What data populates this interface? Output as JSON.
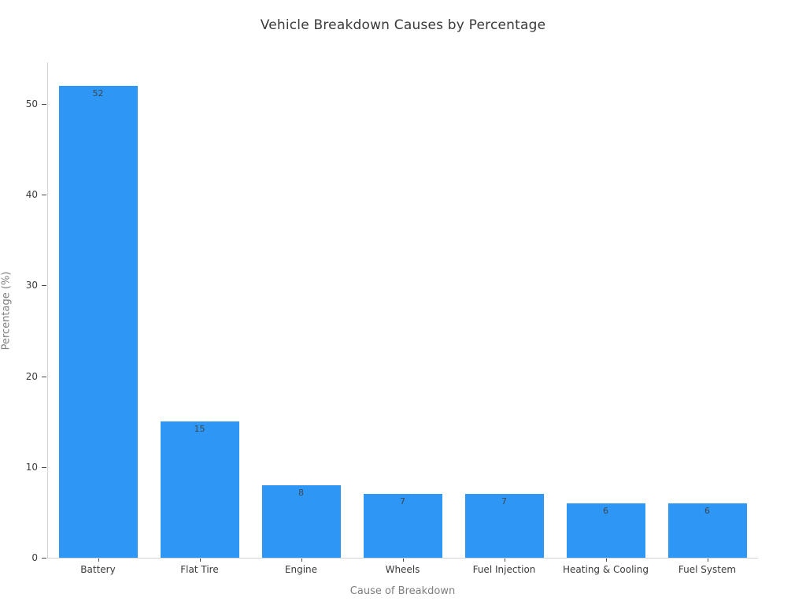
{
  "chart_data": {
    "type": "bar",
    "title": "Vehicle Breakdown Causes by Percentage",
    "xlabel": "Cause of Breakdown",
    "ylabel": "Percentage (%)",
    "categories": [
      "Battery",
      "Flat Tire",
      "Engine",
      "Wheels",
      "Fuel Injection",
      "Heating & Cooling",
      "Fuel System"
    ],
    "values": [
      52,
      15,
      8,
      7,
      7,
      6,
      6
    ],
    "value_labels": [
      "52",
      "15",
      "8",
      "7",
      "7",
      "6",
      "6"
    ],
    "yticks": [
      0,
      10,
      20,
      30,
      40,
      50
    ],
    "ylim": [
      0,
      54.6
    ],
    "grid": false,
    "legend_position": "none",
    "bar_color": "#2E96F5",
    "colors": {
      "title_text": "#3a3a3a",
      "tick_text": "#3b3b3b",
      "axis_title_text": "#7f7f7f",
      "value_label_text": "#3d4852",
      "spine": "#d4d4d4",
      "background": "#ffffff"
    }
  }
}
